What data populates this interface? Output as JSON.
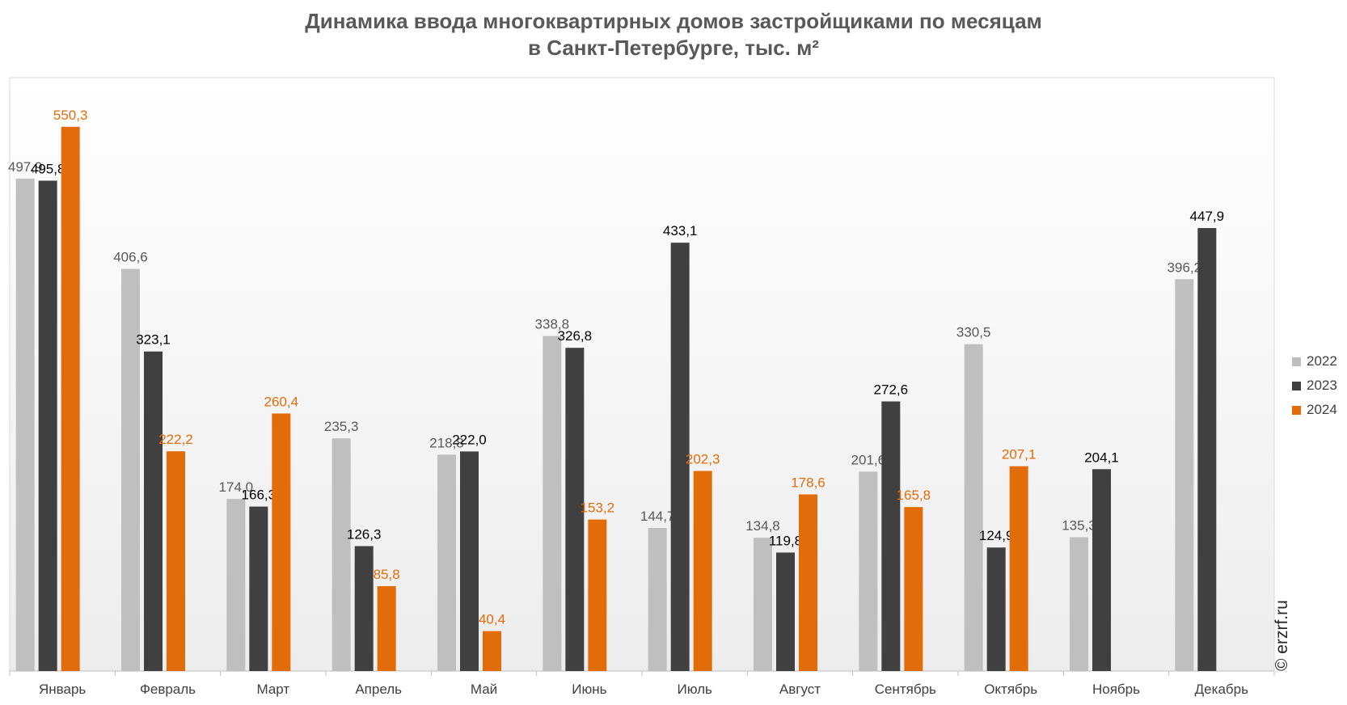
{
  "chart_data": {
    "type": "bar",
    "title": "Динамика ввода многоквартирных домов застройщиками по месяцам",
    "subtitle": "в Санкт-Петербурге, тыс. м²",
    "xlabel": "",
    "ylabel": "",
    "ylim": [
      0,
      600
    ],
    "grid": false,
    "legend_position": "right",
    "categories": [
      "Январь",
      "Февраль",
      "Март",
      "Апрель",
      "Май",
      "Июнь",
      "Июль",
      "Август",
      "Сентябрь",
      "Октябрь",
      "Ноябрь",
      "Декабрь"
    ],
    "series": [
      {
        "name": "2022",
        "color": "#bfbfbf",
        "label_color": "#595959",
        "values": [
          497.9,
          406.6,
          174.0,
          235.3,
          218.8,
          338.8,
          144.7,
          134.8,
          201.6,
          330.5,
          135.3,
          396.2
        ],
        "labels": [
          "497,9",
          "406,6",
          "174,0",
          "235,3",
          "218,8",
          "338,8",
          "144,7",
          "134,8",
          "201,6",
          "330,5",
          "135,3",
          "396,2"
        ]
      },
      {
        "name": "2023",
        "color": "#404040",
        "label_color": "#000000",
        "values": [
          495.8,
          323.1,
          166.3,
          126.3,
          222.0,
          326.8,
          433.1,
          119.8,
          272.6,
          124.9,
          204.1,
          447.9
        ],
        "labels": [
          "495,8",
          "323,1",
          "166,3",
          "126,3",
          "222,0",
          "326,8",
          "433,1",
          "119,8",
          "272,6",
          "124,9",
          "204,1",
          "447,9"
        ]
      },
      {
        "name": "2024",
        "color": "#e36c0a",
        "label_color": "#e36c0a",
        "values": [
          550.3,
          222.2,
          260.4,
          85.8,
          40.4,
          153.2,
          202.3,
          178.6,
          165.8,
          207.1,
          null,
          null
        ],
        "labels": [
          "550,3",
          "222,2",
          "260,4",
          "85,8",
          "40,4",
          "153,2",
          "202,3",
          "178,6",
          "165,8",
          "207,1",
          null,
          null
        ]
      }
    ]
  },
  "credit": "© erzrf.ru"
}
